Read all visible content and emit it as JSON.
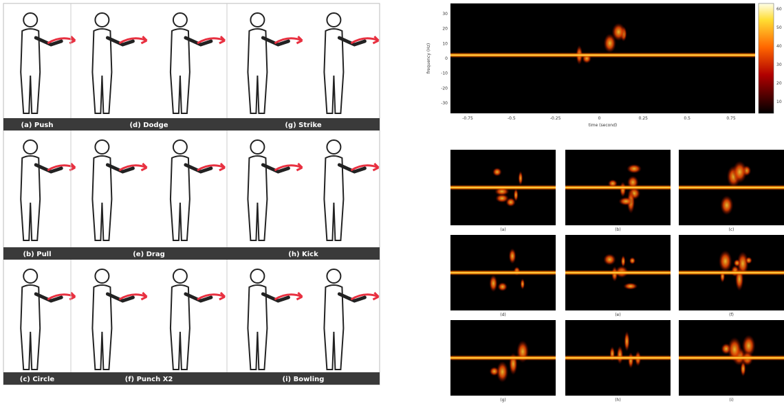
{
  "gesture_panel": {
    "labels": [
      "(a) Push",
      "(d) Dodge",
      "(g) Strike",
      "(b) Pull",
      "(e) Drag",
      "(h) Kick",
      "(c) Circle",
      "(f) Punch X2",
      "(i) Bowling"
    ]
  },
  "spectrogram": {
    "y_label": "frequency (Hz)",
    "x_label": "time (second)",
    "y_ticks": [
      "30",
      "20",
      "10",
      "0",
      "-10",
      "-20",
      "-30"
    ],
    "x_ticks": [
      "-0.75",
      "-0.5",
      "-0.25",
      "0",
      "0.25",
      "0.5",
      "0.75"
    ],
    "colorbar_ticks": [
      "60",
      "50",
      "40",
      "30",
      "20",
      "10"
    ]
  },
  "subplots": {
    "labels": [
      "(a)",
      "(b)",
      "(c)",
      "(d)",
      "(e)",
      "(f)",
      "(g)",
      "(h)",
      "(i)"
    ]
  }
}
